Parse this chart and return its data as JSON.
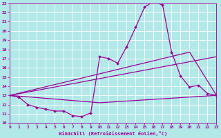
{
  "xlabel": "Windchill (Refroidissement éolien,°C)",
  "bg_color": "#b3e8e8",
  "line_color": "#990099",
  "xlim": [
    0,
    23
  ],
  "ylim": [
    10,
    23
  ],
  "x_ticks": [
    0,
    1,
    2,
    3,
    4,
    5,
    6,
    7,
    8,
    9,
    10,
    11,
    12,
    13,
    14,
    15,
    16,
    17,
    18,
    19,
    20,
    21,
    22,
    23
  ],
  "y_ticks": [
    10,
    11,
    12,
    13,
    14,
    15,
    16,
    17,
    18,
    19,
    20,
    21,
    22,
    23
  ],
  "series1_x": [
    0,
    1,
    2,
    3,
    4,
    5,
    6,
    7,
    8,
    9,
    10,
    11,
    12,
    13,
    14,
    15,
    16,
    17,
    18,
    19,
    20,
    21,
    22,
    23
  ],
  "series1_y": [
    13.0,
    12.8,
    12.0,
    11.7,
    11.5,
    11.3,
    11.3,
    10.8,
    10.7,
    11.1,
    17.2,
    17.0,
    16.5,
    18.3,
    20.4,
    22.6,
    23.2,
    22.8,
    17.7,
    15.1,
    13.9,
    14.1,
    13.2,
    13.0
  ],
  "series2_x": [
    0,
    20,
    23
  ],
  "series2_y": [
    13.0,
    17.7,
    13.0
  ],
  "series3_x": [
    0,
    23
  ],
  "series3_y": [
    13.0,
    17.2
  ],
  "series4_x": [
    0,
    10,
    23
  ],
  "series4_y": [
    13.0,
    12.2,
    13.0
  ]
}
